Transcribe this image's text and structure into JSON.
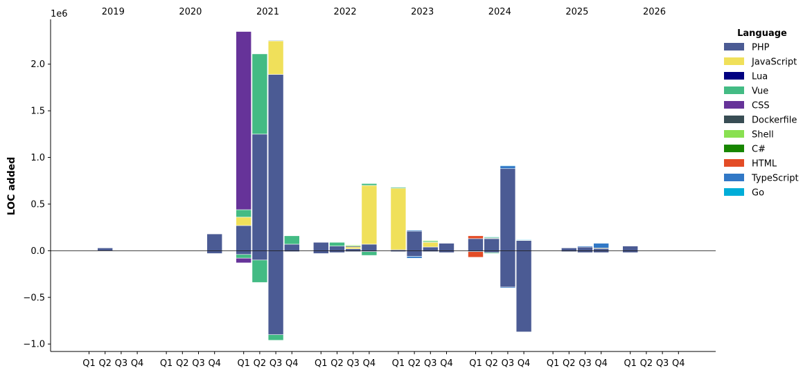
{
  "chart_data": {
    "type": "bar",
    "stacked": true,
    "ylabel": "LOC added",
    "y_multiplier_label": "1e6",
    "ylim": [
      -1.08,
      2.48
    ],
    "yticks": [
      -1.0,
      -0.5,
      0.0,
      0.5,
      1.0,
      1.5,
      2.0
    ],
    "ytick_labels": [
      "−1.0",
      "−0.5",
      "0.0",
      "0.5",
      "1.0",
      "1.5",
      "2.0"
    ],
    "years": [
      "2019",
      "2020",
      "2021",
      "2022",
      "2023",
      "2024",
      "2025",
      "2026"
    ],
    "quarter_labels": [
      "Q1",
      "Q2",
      "Q3",
      "Q4"
    ],
    "legend": {
      "title": "Language",
      "position": "top-right-outside",
      "entries": [
        "PHP",
        "JavaScript",
        "Lua",
        "Vue",
        "CSS",
        "Dockerfile",
        "Shell",
        "C#",
        "HTML",
        "TypeScript",
        "Go"
      ]
    },
    "colors": {
      "PHP": "#4b5b94",
      "JavaScript": "#f0e05a",
      "Lua": "#000080",
      "Vue": "#43bb84",
      "CSS": "#663399",
      "Dockerfile": "#384d54",
      "Shell": "#89e051",
      "C#": "#178600",
      "HTML": "#e34c26",
      "TypeScript": "#3178c6",
      "Go": "#00add8"
    },
    "series": [
      {
        "name": "PHP",
        "values": [
          0,
          0.03,
          0,
          0,
          0,
          0,
          0,
          0.18,
          0.27,
          1.25,
          1.89,
          0.07,
          0.09,
          0.05,
          0.02,
          0.07,
          0.01,
          0.21,
          0.04,
          0.08,
          0.13,
          0.13,
          0.88,
          0.11,
          0,
          0.03,
          0.04,
          0.02,
          0.05,
          0,
          0,
          0
        ]
      },
      {
        "name": "JavaScript",
        "values": [
          0,
          0,
          0,
          0,
          0,
          0,
          0,
          0,
          0.09,
          0,
          0.36,
          0,
          0,
          0,
          0.02,
          0.63,
          0.66,
          0,
          0.05,
          0,
          0,
          0,
          0,
          0,
          0,
          0,
          0,
          0,
          0,
          0,
          0,
          0
        ]
      },
      {
        "name": "Dockerfile",
        "values": [
          0,
          0,
          0,
          0,
          0,
          0,
          0,
          0,
          0,
          0,
          0,
          0,
          0,
          0,
          0.01,
          0,
          0,
          0,
          0,
          0,
          0,
          0.005,
          0,
          0,
          0,
          0,
          0,
          0.01,
          0,
          0,
          0,
          0
        ]
      },
      {
        "name": "Vue",
        "values": [
          0,
          0,
          0,
          0,
          0,
          0,
          0,
          0,
          0.08,
          0.86,
          0,
          0.09,
          0,
          0.04,
          0,
          0.02,
          0.01,
          0,
          0.01,
          0,
          0,
          0.01,
          0,
          0.005,
          0,
          0,
          0,
          0,
          0,
          0,
          0,
          0
        ]
      },
      {
        "name": "CSS",
        "values": [
          0,
          0,
          0,
          0,
          0,
          0,
          0,
          0,
          1.91,
          0,
          0,
          0,
          0,
          0,
          0,
          0,
          0,
          0,
          0,
          0,
          0,
          0,
          0,
          0,
          0,
          0,
          0,
          0,
          0,
          0,
          0,
          0
        ]
      },
      {
        "name": "Shell",
        "values": [
          0,
          0,
          0,
          0,
          0,
          0,
          0,
          0,
          0,
          0,
          0,
          0,
          0,
          0,
          0.01,
          0,
          0,
          0,
          0.01,
          0,
          0,
          0,
          0,
          0,
          0,
          0,
          0,
          0,
          0,
          0,
          0,
          0
        ]
      },
      {
        "name": "HTML",
        "values": [
          0,
          0,
          0,
          0,
          0,
          0,
          0,
          0,
          0,
          0,
          0,
          0,
          0,
          0,
          0,
          0,
          0,
          0,
          0,
          0,
          0.03,
          0,
          0,
          0,
          0,
          0,
          0,
          0,
          0,
          0,
          0,
          0
        ]
      },
      {
        "name": "TypeScript",
        "values": [
          0,
          0,
          0,
          0,
          0,
          0,
          0,
          0,
          0,
          0,
          0.005,
          0,
          0,
          0,
          0,
          0,
          0,
          0.01,
          0,
          0,
          0,
          0,
          0.03,
          0,
          0,
          0,
          0.01,
          0.05,
          0,
          0,
          0,
          0
        ]
      },
      {
        "name": "Go",
        "values": [
          0,
          0,
          0,
          0,
          0,
          0,
          0,
          0,
          0,
          0,
          0,
          0,
          0,
          0,
          0,
          0,
          0,
          0,
          0,
          0,
          0,
          0.005,
          0.005,
          0.005,
          0,
          0,
          0,
          0,
          0,
          0,
          0,
          0
        ]
      }
    ],
    "negative_series": [
      {
        "name": "PHP",
        "values": [
          0,
          0,
          0,
          0,
          0,
          0,
          0,
          -0.03,
          -0.04,
          -0.1,
          -0.9,
          -0.01,
          -0.03,
          -0.02,
          -0.01,
          -0.01,
          -0.01,
          -0.06,
          -0.01,
          -0.02,
          -0.01,
          -0.02,
          -0.39,
          -0.87,
          0,
          -0.01,
          -0.02,
          -0.02,
          -0.02,
          0,
          0,
          0
        ]
      },
      {
        "name": "Vue",
        "values": [
          0,
          0,
          0,
          0,
          0,
          0,
          0,
          0,
          -0.04,
          -0.24,
          -0.06,
          0,
          0,
          0,
          0,
          -0.04,
          0,
          0,
          0,
          0,
          0,
          -0.01,
          0,
          0,
          0,
          0,
          0,
          0,
          0,
          0,
          0,
          0
        ]
      },
      {
        "name": "CSS",
        "values": [
          0,
          0,
          0,
          0,
          0,
          0,
          0,
          0,
          -0.05,
          0,
          0,
          0,
          0,
          0,
          0,
          0,
          0,
          0,
          0,
          0,
          0,
          0,
          0,
          0,
          0,
          0,
          0,
          0,
          0,
          0,
          0,
          0
        ]
      },
      {
        "name": "HTML",
        "values": [
          0,
          0,
          0,
          0,
          0,
          0,
          0,
          0,
          0,
          0,
          0,
          0,
          0,
          0,
          0,
          0,
          0,
          0,
          0,
          0,
          -0.06,
          0,
          0,
          0,
          0,
          0,
          0,
          0,
          0,
          0,
          0,
          0
        ]
      },
      {
        "name": "TypeScript",
        "values": [
          0,
          0,
          0,
          0,
          0,
          0,
          0,
          0,
          0,
          0,
          0,
          0,
          0,
          0,
          0,
          0,
          0,
          -0.02,
          0,
          0,
          0,
          0,
          -0.01,
          0,
          0,
          0,
          0,
          0,
          0,
          0,
          0,
          0
        ]
      }
    ]
  }
}
